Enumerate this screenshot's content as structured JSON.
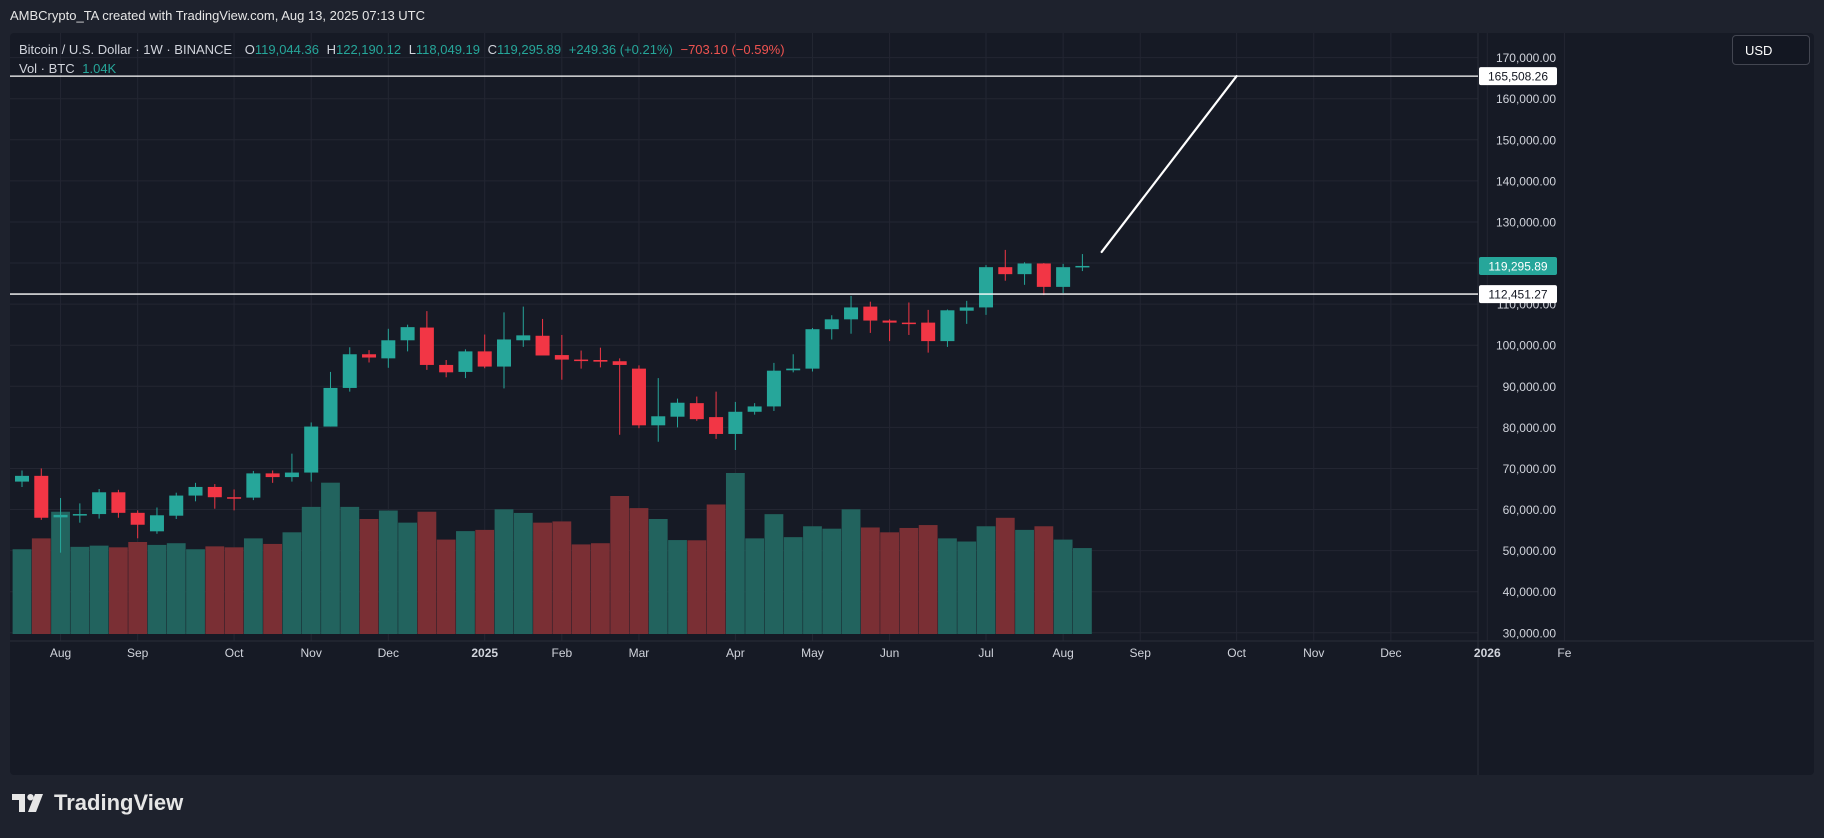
{
  "caption": "AMBCrypto_TA created with TradingView.com, Aug 13, 2025 07:13 UTC",
  "legend": {
    "symbol": "Bitcoin / U.S. Dollar · 1W · BINANCE",
    "o_label": "O",
    "o_value": "119,044.36",
    "h_label": "H",
    "h_value": "122,190.12",
    "l_label": "L",
    "l_value": "118,049.19",
    "c_label": "C",
    "c_value": "119,295.89",
    "change": "+249.36 (+0.21%)",
    "change2": "−703.10 (−0.59%)",
    "vol_label": "Vol · BTC",
    "vol_value": "1.04K"
  },
  "currency": "USD",
  "brand": "TradingView",
  "colors": {
    "up": "#26a69a",
    "down": "#f23645",
    "vol_up": "#22635e",
    "vol_down": "#7a2f34",
    "background": "#161a25",
    "grid": "#232632",
    "text": "#d1d4dc"
  },
  "chart_data": {
    "type": "candlestick",
    "interval": "1W",
    "ylim": [
      28000,
      176000
    ],
    "y_ticks": [
      "30,000.00",
      "40,000.00",
      "50,000.00",
      "60,000.00",
      "70,000.00",
      "80,000.00",
      "90,000.00",
      "100,000.00",
      "110,000.00",
      "120,000.00",
      "130,000.00",
      "140,000.00",
      "150,000.00",
      "160,000.00",
      "170,000.00"
    ],
    "y_tick_values": [
      30000,
      40000,
      50000,
      60000,
      70000,
      80000,
      90000,
      100000,
      110000,
      120000,
      130000,
      140000,
      150000,
      160000,
      170000
    ],
    "x_labels": [
      {
        "text": "Aug",
        "index": 2
      },
      {
        "text": "Sep",
        "index": 6
      },
      {
        "text": "Oct",
        "index": 11
      },
      {
        "text": "Nov",
        "index": 15
      },
      {
        "text": "Dec",
        "index": 19
      },
      {
        "text": "2025",
        "index": 24
      },
      {
        "text": "Feb",
        "index": 28
      },
      {
        "text": "Mar",
        "index": 32
      },
      {
        "text": "Apr",
        "index": 37
      },
      {
        "text": "May",
        "index": 41
      },
      {
        "text": "Jun",
        "index": 45
      },
      {
        "text": "Jul",
        "index": 50
      },
      {
        "text": "Aug",
        "index": 54
      },
      {
        "text": "Sep",
        "index": 58
      },
      {
        "text": "Oct",
        "index": 63
      },
      {
        "text": "Nov",
        "index": 67
      },
      {
        "text": "Dec",
        "index": 71
      },
      {
        "text": "2026",
        "index": 76
      },
      {
        "text": "Fe",
        "index": 80
      }
    ],
    "x_labels_bold": [
      "2025",
      "2026"
    ],
    "candles": [
      {
        "o": 66800,
        "h": 69500,
        "l": 65500,
        "c": 68200,
        "v": 35000
      },
      {
        "o": 68200,
        "h": 70000,
        "l": 57500,
        "c": 58000,
        "v": 39500
      },
      {
        "o": 58100,
        "h": 62800,
        "l": 49500,
        "c": 58700,
        "v": 50500
      },
      {
        "o": 58700,
        "h": 61500,
        "l": 56800,
        "c": 58900,
        "v": 36000
      },
      {
        "o": 58900,
        "h": 65000,
        "l": 57800,
        "c": 64200,
        "v": 36500
      },
      {
        "o": 64200,
        "h": 64800,
        "l": 58000,
        "c": 59200,
        "v": 35800
      },
      {
        "o": 59200,
        "h": 59800,
        "l": 53000,
        "c": 56300,
        "v": 38000
      },
      {
        "o": 54700,
        "h": 60500,
        "l": 54100,
        "c": 58600,
        "v": 36800
      },
      {
        "o": 58500,
        "h": 64100,
        "l": 57700,
        "c": 63400,
        "v": 37500
      },
      {
        "o": 63400,
        "h": 66500,
        "l": 62000,
        "c": 65500,
        "v": 35000
      },
      {
        "o": 65500,
        "h": 66200,
        "l": 60200,
        "c": 63000,
        "v": 36200
      },
      {
        "o": 63000,
        "h": 64900,
        "l": 59800,
        "c": 62900,
        "v": 35800
      },
      {
        "o": 62900,
        "h": 69400,
        "l": 62300,
        "c": 68800,
        "v": 39500
      },
      {
        "o": 68800,
        "h": 69500,
        "l": 66500,
        "c": 67900,
        "v": 37200
      },
      {
        "o": 67900,
        "h": 73600,
        "l": 66800,
        "c": 69000,
        "v": 42000
      },
      {
        "o": 69000,
        "h": 81200,
        "l": 66800,
        "c": 80200,
        "v": 52500
      },
      {
        "o": 80200,
        "h": 93500,
        "l": 80200,
        "c": 89600,
        "v": 62500
      },
      {
        "o": 89600,
        "h": 99500,
        "l": 88700,
        "c": 97800,
        "v": 52500
      },
      {
        "o": 97800,
        "h": 98800,
        "l": 95800,
        "c": 97000,
        "v": 47500
      },
      {
        "o": 96800,
        "h": 104000,
        "l": 94500,
        "c": 101200,
        "v": 51000
      },
      {
        "o": 101200,
        "h": 105000,
        "l": 98500,
        "c": 104400,
        "v": 46000
      },
      {
        "o": 104300,
        "h": 108300,
        "l": 94000,
        "c": 95200,
        "v": 50500
      },
      {
        "o": 95200,
        "h": 96400,
        "l": 92200,
        "c": 93400,
        "v": 39000
      },
      {
        "o": 93500,
        "h": 99000,
        "l": 92000,
        "c": 98500,
        "v": 42500
      },
      {
        "o": 98500,
        "h": 102600,
        "l": 94400,
        "c": 94800,
        "v": 43000
      },
      {
        "o": 94800,
        "h": 108000,
        "l": 89500,
        "c": 101400,
        "v": 51500
      },
      {
        "o": 101200,
        "h": 109400,
        "l": 99600,
        "c": 102400,
        "v": 50000
      },
      {
        "o": 102300,
        "h": 106400,
        "l": 97700,
        "c": 97500,
        "v": 46000
      },
      {
        "o": 97600,
        "h": 102500,
        "l": 91600,
        "c": 96500,
        "v": 46500
      },
      {
        "o": 96500,
        "h": 98700,
        "l": 94300,
        "c": 96200,
        "v": 37000
      },
      {
        "o": 96400,
        "h": 99400,
        "l": 94600,
        "c": 96000,
        "v": 37500
      },
      {
        "o": 96100,
        "h": 96800,
        "l": 78200,
        "c": 95200,
        "v": 57000
      },
      {
        "o": 94300,
        "h": 95100,
        "l": 79800,
        "c": 80500,
        "v": 52000
      },
      {
        "o": 80500,
        "h": 92000,
        "l": 76500,
        "c": 82700,
        "v": 47500
      },
      {
        "o": 82600,
        "h": 87000,
        "l": 80000,
        "c": 86000,
        "v": 38800
      },
      {
        "o": 85900,
        "h": 87500,
        "l": 81600,
        "c": 82000,
        "v": 38700
      },
      {
        "o": 82500,
        "h": 88700,
        "l": 77200,
        "c": 78400,
        "v": 53500
      },
      {
        "o": 78400,
        "h": 86200,
        "l": 74500,
        "c": 83800,
        "v": 66500
      },
      {
        "o": 83800,
        "h": 85900,
        "l": 83100,
        "c": 85100,
        "v": 39500
      },
      {
        "o": 85100,
        "h": 95700,
        "l": 84000,
        "c": 93800,
        "v": 49500
      },
      {
        "o": 93900,
        "h": 97800,
        "l": 93400,
        "c": 94300,
        "v": 40000
      },
      {
        "o": 94300,
        "h": 104200,
        "l": 93600,
        "c": 103900,
        "v": 44500
      },
      {
        "o": 103900,
        "h": 107300,
        "l": 101400,
        "c": 106300,
        "v": 43500
      },
      {
        "o": 106300,
        "h": 112000,
        "l": 102800,
        "c": 109200,
        "v": 51500
      },
      {
        "o": 109400,
        "h": 110600,
        "l": 103000,
        "c": 106000,
        "v": 44000
      },
      {
        "o": 106000,
        "h": 106300,
        "l": 101000,
        "c": 105500,
        "v": 42000
      },
      {
        "o": 105500,
        "h": 110400,
        "l": 102500,
        "c": 105400,
        "v": 43800
      },
      {
        "o": 105500,
        "h": 108600,
        "l": 98200,
        "c": 101000,
        "v": 45000
      },
      {
        "o": 101000,
        "h": 108700,
        "l": 99600,
        "c": 108500,
        "v": 39500
      },
      {
        "o": 108400,
        "h": 110800,
        "l": 105200,
        "c": 109200,
        "v": 38200
      },
      {
        "o": 109200,
        "h": 119500,
        "l": 107400,
        "c": 119000,
        "v": 44500
      },
      {
        "o": 119000,
        "h": 123200,
        "l": 115700,
        "c": 117300,
        "v": 48000
      },
      {
        "o": 117300,
        "h": 120200,
        "l": 114700,
        "c": 119900,
        "v": 43000
      },
      {
        "o": 119900,
        "h": 120000,
        "l": 112200,
        "c": 114200,
        "v": 44500
      },
      {
        "o": 114200,
        "h": 119800,
        "l": 112700,
        "c": 119000,
        "v": 39000
      },
      {
        "o": 119044.36,
        "h": 122190.12,
        "l": 118049.19,
        "c": 119295.89,
        "v": 35500
      }
    ],
    "hlines": [
      {
        "value": 165508.26,
        "label": "165,508.26"
      },
      {
        "value": 112451.27,
        "label": "112,451.27"
      }
    ],
    "last_price": {
      "value": 119295.89,
      "label": "119,295.89"
    },
    "trend_line": {
      "from": {
        "index": 56,
        "value": 122700
      },
      "to": {
        "index": 63,
        "value": 165508.26
      }
    }
  }
}
